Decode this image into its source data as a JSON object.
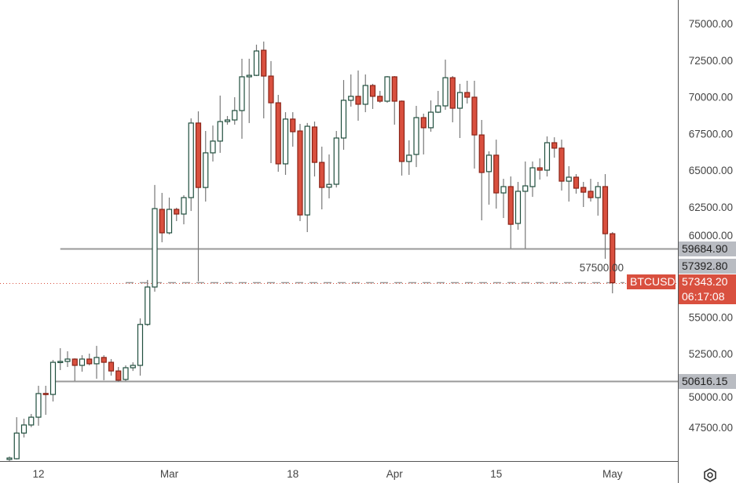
{
  "symbol": "BTCUSD",
  "last_price": "57343.20",
  "countdown": "06:17:08",
  "level_labels": [
    "59684.90",
    "57392.80",
    "50616.15"
  ],
  "colors": {
    "up_border": "#1f4e3d",
    "up_fill": "#ffffff",
    "down_fill": "#d9503f",
    "down_border": "#8a2317",
    "wick": "#777777",
    "level_line": "#9a9a9a",
    "price_line": "#d9503f"
  },
  "chart_data": {
    "type": "candlestick",
    "title": "BTCUSD",
    "ylim": [
      45000,
      76500
    ],
    "y_ticks": [
      47500,
      50000,
      52500,
      55000,
      57500,
      60000,
      62500,
      65000,
      67500,
      70000,
      72500,
      75000
    ],
    "y_tick_labels": [
      "47500.00",
      "50000.00",
      "52500.00",
      "55000.00",
      "57500.00",
      "60000.00",
      "62500.00",
      "65000.00",
      "67500.00",
      "70000.00",
      "72500.00",
      "75000.00"
    ],
    "x_ticks": [
      {
        "index": 4,
        "label": "12"
      },
      {
        "index": 22,
        "label": "Mar"
      },
      {
        "index": 39,
        "label": "18"
      },
      {
        "index": 53,
        "label": "Apr"
      },
      {
        "index": 67,
        "label": "15"
      },
      {
        "index": 83,
        "label": "May"
      }
    ],
    "horizontal_levels": [
      {
        "value": 59684.9,
        "style": "solid",
        "start_index": 7
      },
      {
        "value": 50616.15,
        "style": "solid",
        "start_index": 6
      },
      {
        "value": 57392.8,
        "style": "dashed",
        "start_index": 16
      },
      {
        "value": 57343.2,
        "style": "dotted-price",
        "start_index": -2
      }
    ],
    "ohlc": [
      [
        45300,
        45500,
        45200,
        45400
      ],
      [
        45350,
        48180,
        45300,
        47100
      ],
      [
        47100,
        48080,
        46800,
        47650
      ],
      [
        47650,
        48400,
        47500,
        48180
      ],
      [
        48180,
        50320,
        47600,
        49790
      ],
      [
        49800,
        50320,
        48340,
        49730
      ],
      [
        49730,
        52080,
        49250,
        51920
      ],
      [
        51920,
        52880,
        51390,
        51980
      ],
      [
        51980,
        52670,
        51600,
        52140
      ],
      [
        52140,
        52190,
        50640,
        51710
      ],
      [
        51710,
        52400,
        51280,
        52140
      ],
      [
        52140,
        52510,
        51710,
        51820
      ],
      [
        51820,
        53040,
        50800,
        52250
      ],
      [
        52250,
        52400,
        50700,
        51920
      ],
      [
        51920,
        52140,
        51010,
        51330
      ],
      [
        51330,
        51600,
        50590,
        50700
      ],
      [
        50750,
        51710,
        50640,
        51550
      ],
      [
        51550,
        51920,
        51330,
        51710
      ],
      [
        51710,
        54910,
        51010,
        54500
      ],
      [
        54500,
        57530,
        54400,
        57050
      ],
      [
        57050,
        64000,
        56730,
        62390
      ],
      [
        62340,
        63460,
        60100,
        60740
      ],
      [
        60740,
        63140,
        60630,
        62340
      ],
      [
        62340,
        62450,
        61540,
        62020
      ],
      [
        62020,
        63300,
        61320,
        63140
      ],
      [
        63140,
        68540,
        62230,
        68220
      ],
      [
        68220,
        69020,
        57430,
        63830
      ],
      [
        63830,
        67680,
        62870,
        66190
      ],
      [
        66190,
        68050,
        65600,
        66990
      ],
      [
        66990,
        70090,
        66190,
        68320
      ],
      [
        68320,
        68700,
        68110,
        68430
      ],
      [
        68430,
        69980,
        68110,
        69070
      ],
      [
        69070,
        72600,
        67150,
        71370
      ],
      [
        71370,
        72600,
        68220,
        71470
      ],
      [
        71470,
        73560,
        71420,
        73130
      ],
      [
        73180,
        73770,
        68540,
        71420
      ],
      [
        71420,
        72440,
        65490,
        69600
      ],
      [
        69600,
        70140,
        64900,
        65440
      ],
      [
        65440,
        68960,
        64690,
        68490
      ],
      [
        68490,
        68960,
        66610,
        67630
      ],
      [
        67680,
        68160,
        61540,
        61960
      ],
      [
        61960,
        68220,
        60790,
        68000
      ],
      [
        67950,
        68320,
        64580,
        65540
      ],
      [
        65540,
        66610,
        62340,
        63830
      ],
      [
        63850,
        66080,
        63090,
        64040
      ],
      [
        64050,
        67680,
        63830,
        67200
      ],
      [
        67200,
        71150,
        66400,
        69770
      ],
      [
        69770,
        71530,
        69340,
        70040
      ],
      [
        70040,
        71800,
        68380,
        69500
      ],
      [
        69500,
        71530,
        68960,
        70780
      ],
      [
        70780,
        70890,
        69180,
        70040
      ],
      [
        70040,
        70410,
        69600,
        69710
      ],
      [
        69710,
        71420,
        69600,
        71370
      ],
      [
        71370,
        71420,
        68110,
        69710
      ],
      [
        69710,
        69760,
        64640,
        65600
      ],
      [
        65600,
        67040,
        64690,
        66030
      ],
      [
        66080,
        69390,
        65220,
        68590
      ],
      [
        68590,
        68860,
        66080,
        67900
      ],
      [
        67900,
        69760,
        67630,
        68960
      ],
      [
        68960,
        70410,
        68900,
        69390
      ],
      [
        69390,
        72540,
        69120,
        71310
      ],
      [
        71310,
        71420,
        68270,
        69230
      ],
      [
        69230,
        70890,
        67200,
        70300
      ],
      [
        70300,
        71100,
        69550,
        69980
      ],
      [
        69980,
        71100,
        65120,
        67410
      ],
      [
        67410,
        68430,
        61590,
        64850
      ],
      [
        64910,
        66290,
        62660,
        66030
      ],
      [
        66030,
        67090,
        62390,
        63460
      ],
      [
        63460,
        64420,
        61750,
        63890
      ],
      [
        63890,
        64580,
        59670,
        61320
      ],
      [
        61380,
        64210,
        60950,
        63570
      ],
      [
        63570,
        65600,
        59670,
        63940
      ],
      [
        63890,
        65600,
        63190,
        65170
      ],
      [
        65170,
        65810,
        64370,
        65010
      ],
      [
        65010,
        67310,
        64580,
        66880
      ],
      [
        66880,
        67250,
        65860,
        66510
      ],
      [
        66510,
        67090,
        63620,
        64260
      ],
      [
        64260,
        65280,
        62870,
        64530
      ],
      [
        64530,
        64740,
        63410,
        63780
      ],
      [
        63830,
        64210,
        62500,
        63510
      ],
      [
        63570,
        64420,
        62870,
        63140
      ],
      [
        63140,
        64210,
        61910,
        63890
      ],
      [
        63890,
        64740,
        58970,
        60680
      ],
      [
        60680,
        60790,
        56620,
        57340
      ]
    ]
  }
}
